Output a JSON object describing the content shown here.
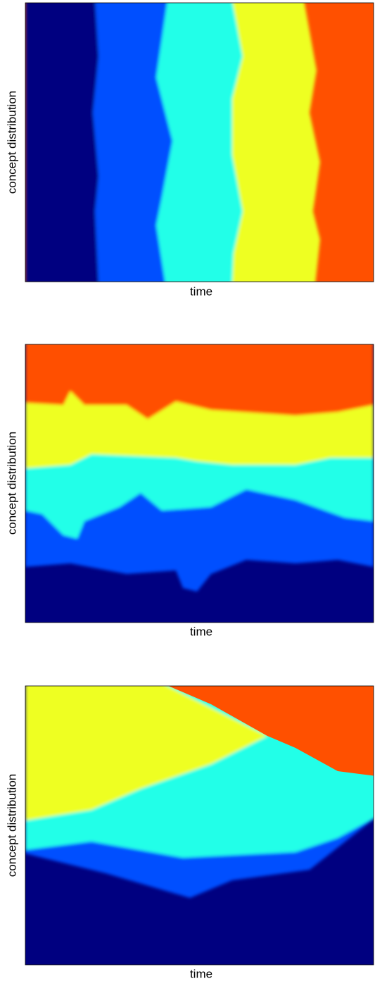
{
  "panels": [
    {
      "y_label": "concept distribution",
      "x_label": "time"
    },
    {
      "y_label": "concept distribution",
      "x_label": "time"
    },
    {
      "y_label": "concept distribution",
      "x_label": "time"
    }
  ]
}
